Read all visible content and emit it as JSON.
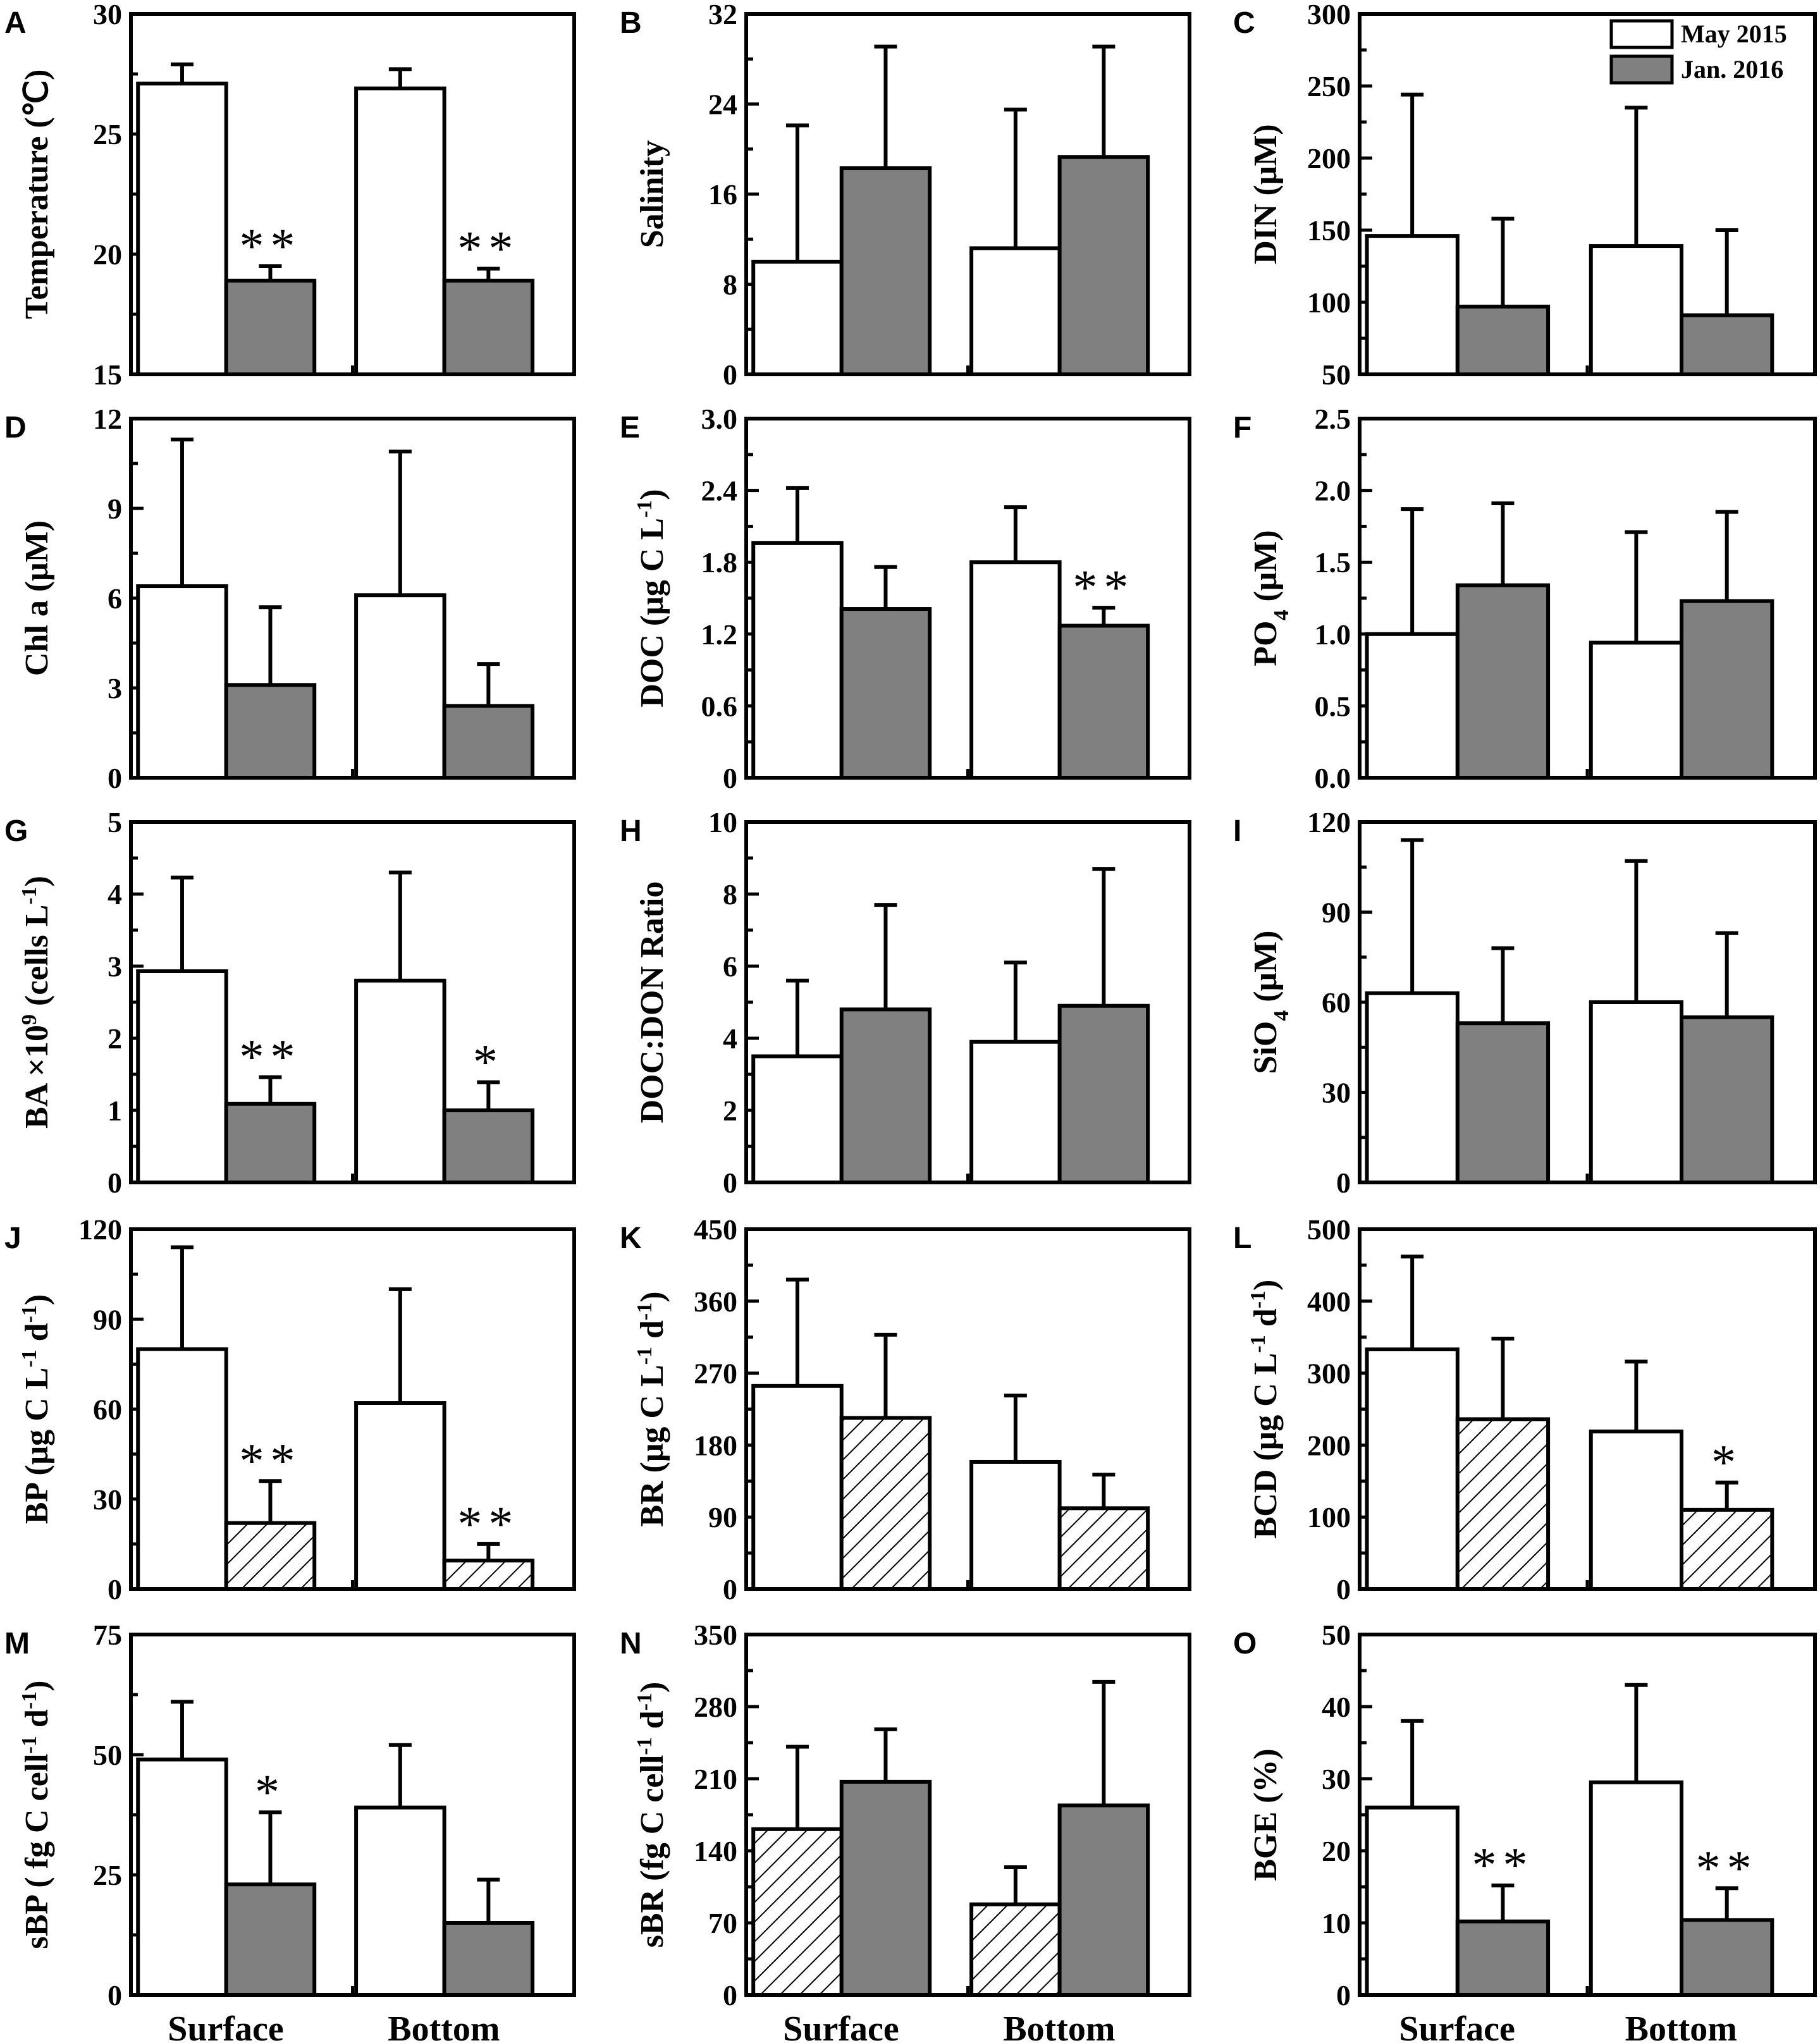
{
  "figure": {
    "categories": [
      "Surface",
      "Bottom"
    ],
    "legend": [
      "May 2015",
      "Jan. 2016"
    ],
    "colors": {
      "may": "#ffffff",
      "jan": "#808080",
      "stroke": "#000000"
    }
  },
  "chart_data": [
    {
      "panel": "A",
      "type": "bar",
      "ylabel": "Temperature (℃)",
      "ylim": [
        15,
        30
      ],
      "yticks": [
        "15",
        "20",
        "25",
        "30"
      ],
      "categories": [
        "Surface",
        "Bottom"
      ],
      "series": [
        {
          "name": "May 2015",
          "values": [
            27.1,
            26.9
          ],
          "errors": [
            0.8,
            0.8
          ],
          "fill": "white",
          "sig": [
            "",
            ""
          ]
        },
        {
          "name": "Jan. 2016",
          "values": [
            18.9,
            18.9
          ],
          "errors": [
            0.6,
            0.5
          ],
          "fill": "gray",
          "sig": [
            "**",
            "**"
          ]
        }
      ]
    },
    {
      "panel": "B",
      "type": "bar",
      "ylabel": "Salinity",
      "ylim": [
        0,
        32
      ],
      "yticks": [
        "0",
        "8",
        "16",
        "24",
        "32"
      ],
      "categories": [
        "Surface",
        "Bottom"
      ],
      "series": [
        {
          "name": "May 2015",
          "values": [
            10.0,
            11.2
          ],
          "errors": [
            12.1,
            12.3
          ],
          "fill": "white",
          "sig": [
            "",
            ""
          ]
        },
        {
          "name": "Jan. 2016",
          "values": [
            18.3,
            19.3
          ],
          "errors": [
            10.8,
            9.8
          ],
          "fill": "gray",
          "sig": [
            "",
            ""
          ]
        }
      ]
    },
    {
      "panel": "C",
      "type": "bar",
      "ylabel": "DIN (μM)",
      "ylim": [
        50,
        300
      ],
      "yticks": [
        "50",
        "100",
        "150",
        "200",
        "250",
        "300"
      ],
      "categories": [
        "Surface",
        "Bottom"
      ],
      "series": [
        {
          "name": "May 2015",
          "values": [
            146,
            139
          ],
          "errors": [
            98,
            96
          ],
          "fill": "white",
          "sig": [
            "",
            ""
          ]
        },
        {
          "name": "Jan. 2016",
          "values": [
            97,
            91
          ],
          "errors": [
            61,
            59
          ],
          "fill": "gray",
          "sig": [
            "",
            ""
          ]
        }
      ]
    },
    {
      "panel": "D",
      "type": "bar",
      "ylabel": "Chl a (μM)",
      "ylim": [
        0,
        12
      ],
      "yticks": [
        "0",
        "3",
        "6",
        "9",
        "12"
      ],
      "categories": [
        "Surface",
        "Bottom"
      ],
      "series": [
        {
          "name": "May 2015",
          "values": [
            6.4,
            6.1
          ],
          "errors": [
            4.9,
            4.8
          ],
          "fill": "white",
          "sig": [
            "",
            ""
          ]
        },
        {
          "name": "Jan. 2016",
          "values": [
            3.1,
            2.4
          ],
          "errors": [
            2.6,
            1.4
          ],
          "fill": "gray",
          "sig": [
            "",
            ""
          ]
        }
      ]
    },
    {
      "panel": "E",
      "type": "bar",
      "ylabel": "DOC (μg C L-1)",
      "ylim": [
        0,
        3.0
      ],
      "yticks": [
        "0",
        "0.6",
        "1.2",
        "1.8",
        "2.4",
        "3.0"
      ],
      "categories": [
        "Surface",
        "Bottom"
      ],
      "series": [
        {
          "name": "May 2015",
          "values": [
            1.96,
            1.8
          ],
          "errors": [
            0.46,
            0.46
          ],
          "fill": "white",
          "sig": [
            "",
            ""
          ]
        },
        {
          "name": "Jan. 2016",
          "values": [
            1.41,
            1.27
          ],
          "errors": [
            0.35,
            0.15
          ],
          "fill": "gray",
          "sig": [
            "",
            "**"
          ]
        }
      ]
    },
    {
      "panel": "F",
      "type": "bar",
      "ylabel": "PO4 (μM)",
      "ylim": [
        0,
        2.5
      ],
      "yticks": [
        "0.0",
        "0.5",
        "1.0",
        "1.5",
        "2.0",
        "2.5"
      ],
      "categories": [
        "Surface",
        "Bottom"
      ],
      "series": [
        {
          "name": "May 2015",
          "values": [
            1.0,
            0.94
          ],
          "errors": [
            0.87,
            0.77
          ],
          "fill": "white",
          "sig": [
            "",
            ""
          ]
        },
        {
          "name": "Jan. 2016",
          "values": [
            1.34,
            1.23
          ],
          "errors": [
            0.57,
            0.62
          ],
          "fill": "gray",
          "sig": [
            "",
            ""
          ]
        }
      ]
    },
    {
      "panel": "G",
      "type": "bar",
      "ylabel": "BA ×10⁹ (cells L-1)",
      "ylim": [
        0,
        5
      ],
      "yticks": [
        "0",
        "1",
        "2",
        "3",
        "4",
        "5"
      ],
      "categories": [
        "Surface",
        "Bottom"
      ],
      "series": [
        {
          "name": "May 2015",
          "values": [
            2.93,
            2.8
          ],
          "errors": [
            1.3,
            1.5
          ],
          "fill": "white",
          "sig": [
            "",
            ""
          ]
        },
        {
          "name": "Jan. 2016",
          "values": [
            1.09,
            1.0
          ],
          "errors": [
            0.37,
            0.39
          ],
          "fill": "gray",
          "sig": [
            "**",
            "*"
          ]
        }
      ]
    },
    {
      "panel": "H",
      "type": "bar",
      "ylabel": "DOC:DON Ratio",
      "ylim": [
        0,
        10
      ],
      "yticks": [
        "0",
        "2",
        "4",
        "6",
        "8",
        "10"
      ],
      "categories": [
        "Surface",
        "Bottom"
      ],
      "series": [
        {
          "name": "May 2015",
          "values": [
            3.5,
            3.9
          ],
          "errors": [
            2.1,
            2.2
          ],
          "fill": "white",
          "sig": [
            "",
            ""
          ]
        },
        {
          "name": "Jan. 2016",
          "values": [
            4.8,
            4.9
          ],
          "errors": [
            2.9,
            3.8
          ],
          "fill": "gray",
          "sig": [
            "",
            ""
          ]
        }
      ]
    },
    {
      "panel": "I",
      "type": "bar",
      "ylabel": "SiO4 (μM)",
      "ylim": [
        0,
        120
      ],
      "yticks": [
        "0",
        "30",
        "60",
        "90",
        "120"
      ],
      "categories": [
        "Surface",
        "Bottom"
      ],
      "series": [
        {
          "name": "May 2015",
          "values": [
            63,
            60
          ],
          "errors": [
            51,
            47
          ],
          "fill": "white",
          "sig": [
            "",
            ""
          ]
        },
        {
          "name": "Jan. 2016",
          "values": [
            53,
            55
          ],
          "errors": [
            25,
            28
          ],
          "fill": "gray",
          "sig": [
            "",
            ""
          ]
        }
      ]
    },
    {
      "panel": "J",
      "type": "bar",
      "ylabel": "BP (μg C L-1 d-1)",
      "ylim": [
        0,
        120
      ],
      "yticks": [
        "0",
        "30",
        "60",
        "90",
        "120"
      ],
      "categories": [
        "Surface",
        "Bottom"
      ],
      "series": [
        {
          "name": "May 2015",
          "values": [
            80,
            62
          ],
          "errors": [
            34,
            38
          ],
          "fill": "white",
          "sig": [
            "",
            ""
          ]
        },
        {
          "name": "Jan. 2016",
          "values": [
            22,
            9.5
          ],
          "errors": [
            14,
            5.5
          ],
          "fill": "hatch",
          "sig": [
            "**",
            "**"
          ]
        }
      ]
    },
    {
      "panel": "K",
      "type": "bar",
      "ylabel": "BR (μg C L-1 d-1)",
      "ylim": [
        0,
        450
      ],
      "yticks": [
        "0",
        "90",
        "180",
        "270",
        "360",
        "450"
      ],
      "categories": [
        "Surface",
        "Bottom"
      ],
      "series": [
        {
          "name": "May 2015",
          "values": [
            254,
            159
          ],
          "errors": [
            133,
            83
          ],
          "fill": "white",
          "sig": [
            "",
            ""
          ]
        },
        {
          "name": "Jan. 2016",
          "values": [
            214,
            101
          ],
          "errors": [
            104,
            42
          ],
          "fill": "hatch",
          "sig": [
            "",
            ""
          ]
        }
      ]
    },
    {
      "panel": "L",
      "type": "bar",
      "ylabel": "BCD (μg C L-1 d-1)",
      "ylim": [
        0,
        500
      ],
      "yticks": [
        "0",
        "100",
        "200",
        "300",
        "400",
        "500"
      ],
      "categories": [
        "Surface",
        "Bottom"
      ],
      "series": [
        {
          "name": "May 2015",
          "values": [
            333,
            219
          ],
          "errors": [
            129,
            97
          ],
          "fill": "white",
          "sig": [
            "",
            ""
          ]
        },
        {
          "name": "Jan. 2016",
          "values": [
            236,
            110
          ],
          "errors": [
            112,
            38
          ],
          "fill": "hatch",
          "sig": [
            "",
            "*"
          ]
        }
      ]
    },
    {
      "panel": "M",
      "type": "bar",
      "ylabel": "sBP ( fg C cell-1 d-1)",
      "ylim": [
        0,
        75
      ],
      "yticks": [
        "0",
        "25",
        "50",
        "75"
      ],
      "categories": [
        "Surface",
        "Bottom"
      ],
      "series": [
        {
          "name": "May 2015",
          "values": [
            49,
            39
          ],
          "errors": [
            12,
            13
          ],
          "fill": "white",
          "sig": [
            "",
            ""
          ]
        },
        {
          "name": "Jan. 2016",
          "values": [
            23,
            15
          ],
          "errors": [
            15,
            9
          ],
          "fill": "gray",
          "sig": [
            "*",
            ""
          ]
        }
      ]
    },
    {
      "panel": "N",
      "type": "bar",
      "ylabel": "sBR (fg C cell-1 d-1)",
      "ylim": [
        0,
        350
      ],
      "yticks": [
        "0",
        "70",
        "140",
        "210",
        "280",
        "350"
      ],
      "categories": [
        "Surface",
        "Bottom"
      ],
      "series": [
        {
          "name": "May 2015",
          "values": [
            161,
            88
          ],
          "errors": [
            80,
            36
          ],
          "fill": "hatch",
          "sig": [
            "",
            ""
          ]
        },
        {
          "name": "Jan. 2016",
          "values": [
            207,
            184
          ],
          "errors": [
            51,
            120
          ],
          "fill": "gray",
          "sig": [
            "",
            ""
          ]
        }
      ]
    },
    {
      "panel": "O",
      "type": "bar",
      "ylabel": "BGE (%)",
      "ylim": [
        0,
        50
      ],
      "yticks": [
        "0",
        "10",
        "20",
        "30",
        "40",
        "50"
      ],
      "categories": [
        "Surface",
        "Bottom"
      ],
      "series": [
        {
          "name": "May 2015",
          "values": [
            26,
            29.5
          ],
          "errors": [
            12,
            13.5
          ],
          "fill": "white",
          "sig": [
            "",
            ""
          ]
        },
        {
          "name": "Jan. 2016",
          "values": [
            10.2,
            10.4
          ],
          "errors": [
            5,
            4.4
          ],
          "fill": "gray",
          "sig": [
            "**",
            "**"
          ]
        }
      ]
    }
  ]
}
